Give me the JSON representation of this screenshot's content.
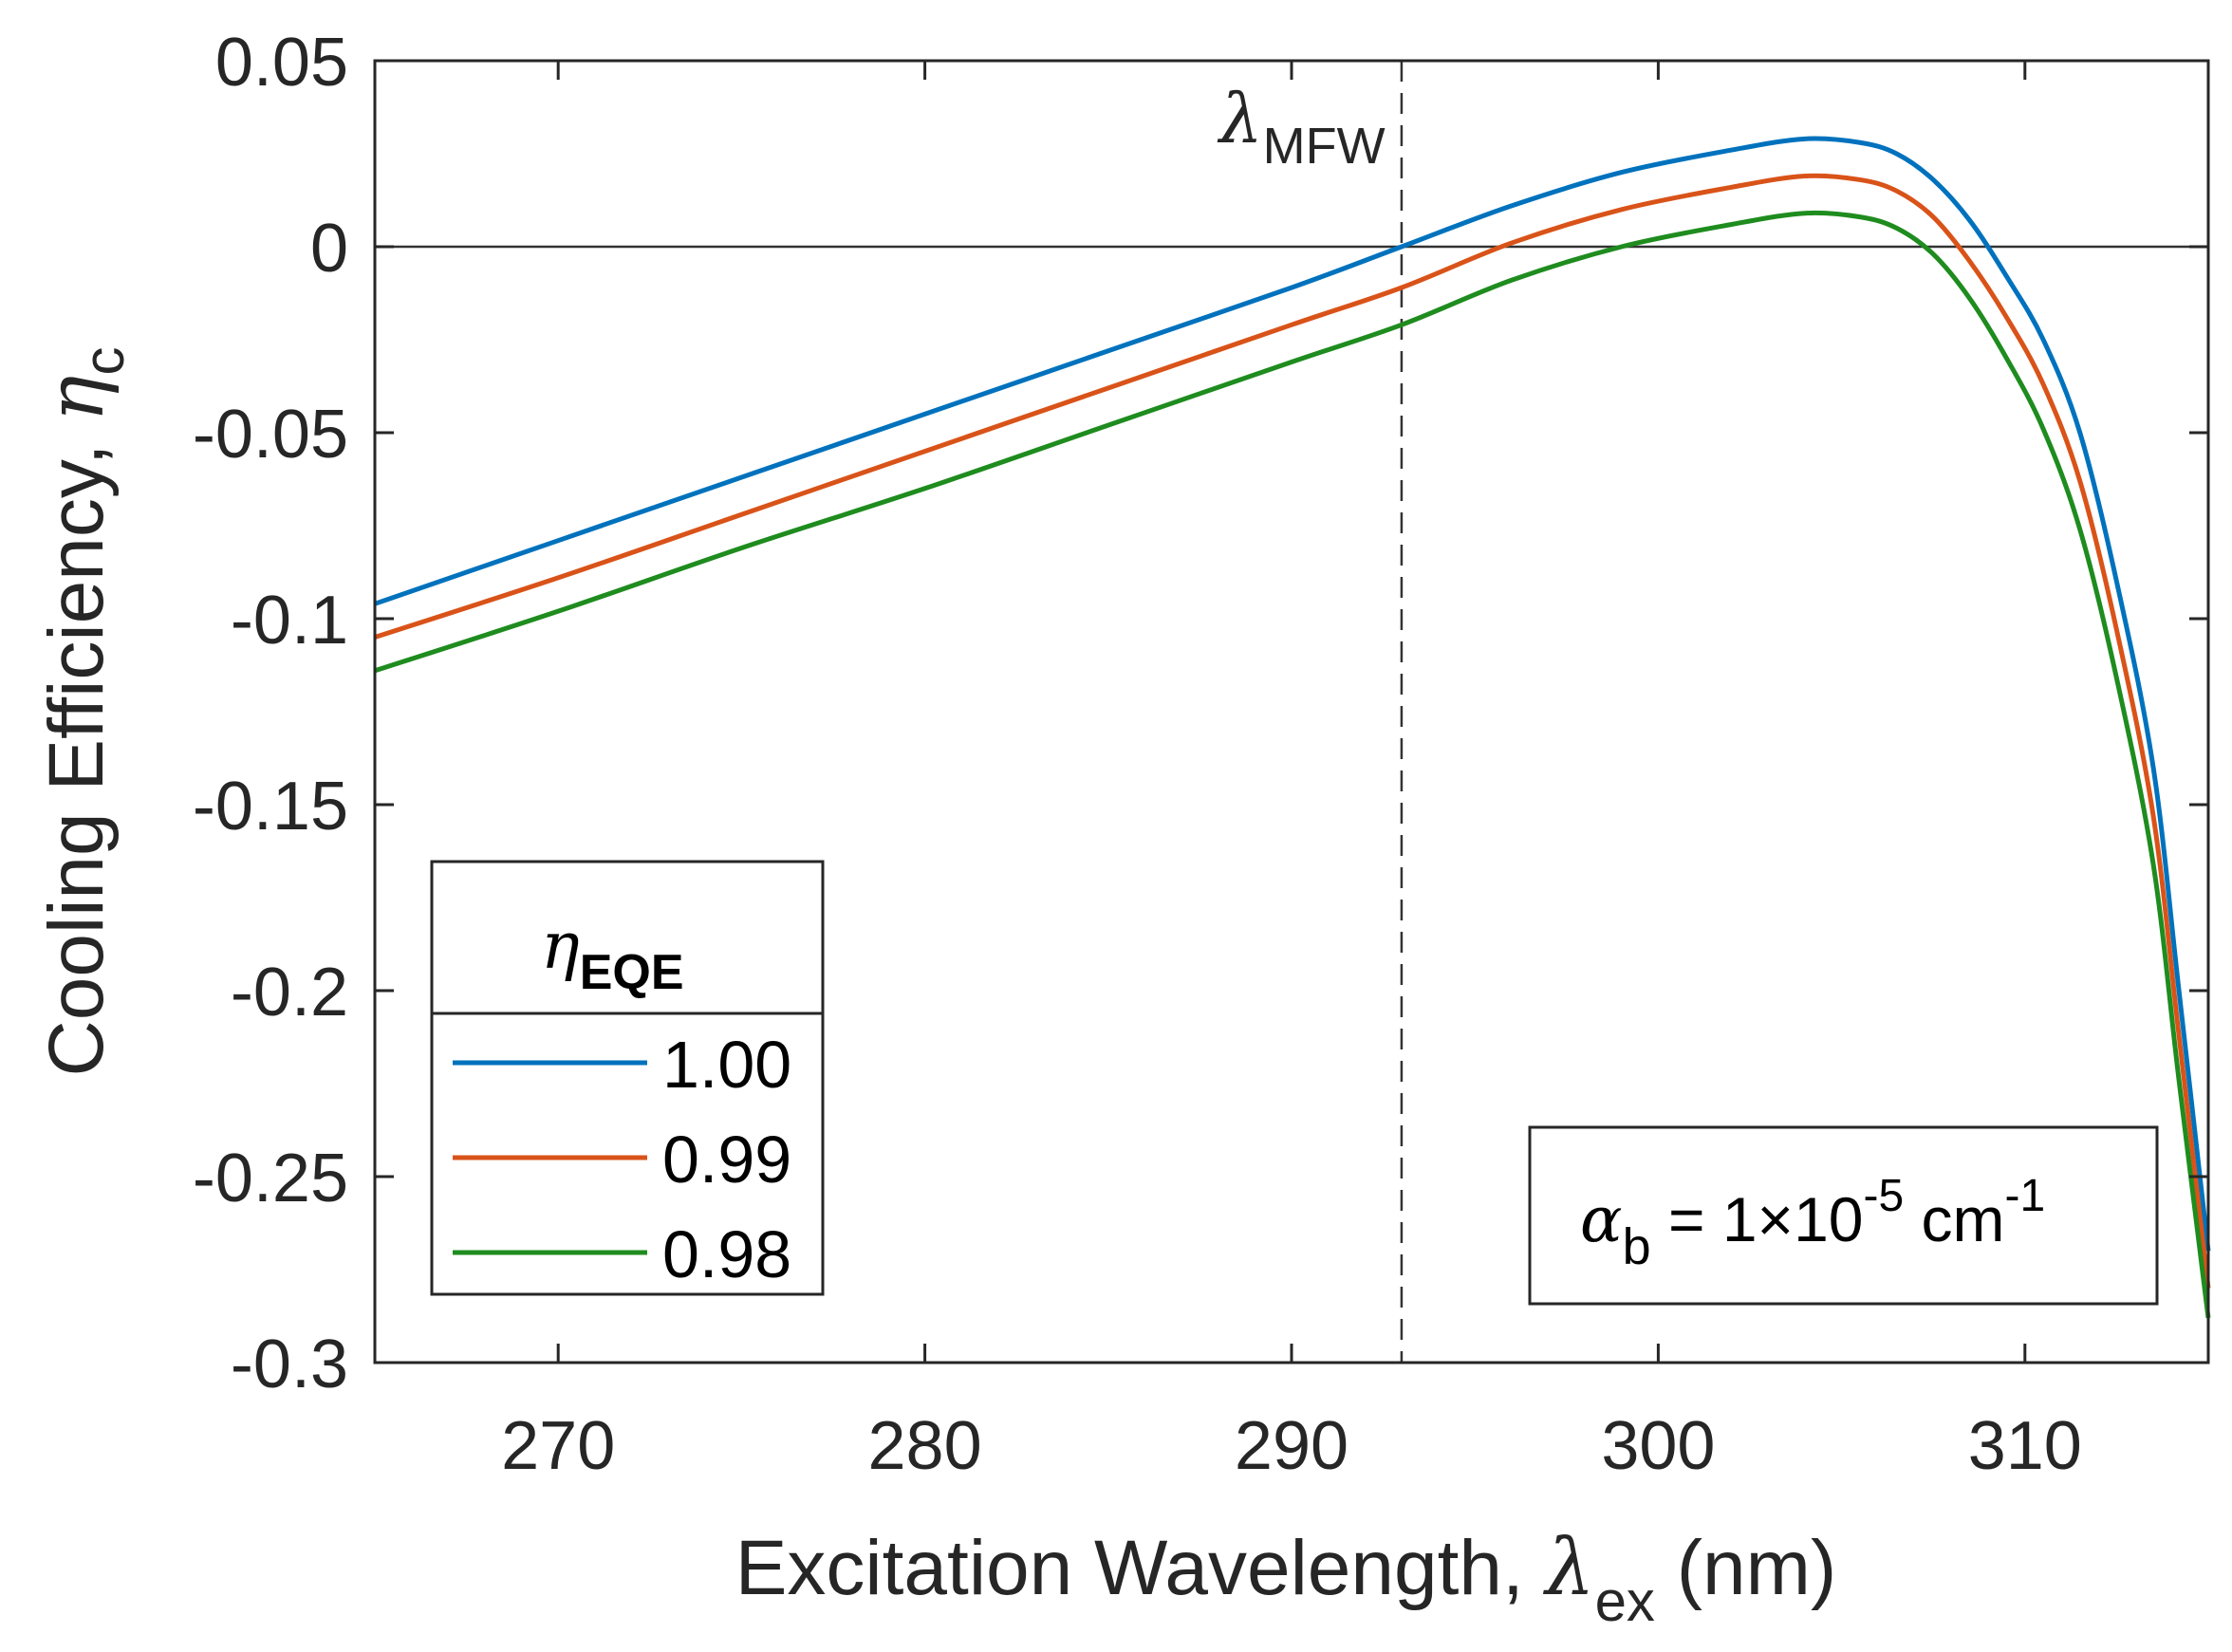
{
  "chart_data": {
    "type": "line",
    "title": "",
    "xlabel": "Excitation Wavelength, ",
    "xlabel_symbol": "λ",
    "xlabel_sub": "ex",
    "xlabel_unit": " (nm)",
    "ylabel": "Cooling Efficiency, ",
    "ylabel_symbol": "η",
    "ylabel_sub": "c",
    "xlim": [
      265,
      315
    ],
    "ylim": [
      -0.3,
      0.05
    ],
    "xticks": [
      270,
      280,
      290,
      300,
      310
    ],
    "xtick_labels": [
      "270",
      "280",
      "290",
      "300",
      "310"
    ],
    "yticks": [
      0.05,
      0,
      -0.05,
      -0.1,
      -0.15,
      -0.2,
      -0.25,
      -0.3
    ],
    "ytick_labels": [
      "0.05",
      "0",
      "-0.05",
      "-0.1",
      "-0.15",
      "-0.2",
      "-0.25",
      "-0.3"
    ],
    "grid": false,
    "zero_line": 0,
    "vline": {
      "x": 293,
      "label_symbol": "λ",
      "label_sub": "MFW"
    },
    "legend": {
      "title_symbol": "η",
      "title_sub": "EQE",
      "position": "bottom-left"
    },
    "annotation": {
      "symbol": "α",
      "sub": "b",
      "text": " = 1×10",
      "exp": "-5",
      "unit": " cm",
      "unit_exp": "-1"
    },
    "series": [
      {
        "name": "1.00",
        "color": "#0072BD",
        "x": [
          265,
          270,
          275,
          280,
          285,
          290,
          293,
          296,
          299,
          302,
          304,
          305.5,
          306.5,
          307.5,
          308.5,
          309.5,
          310.5,
          311.5,
          312.5,
          313.5,
          314.2,
          315
        ],
        "y": [
          -0.096,
          -0.079,
          -0.062,
          -0.045,
          -0.028,
          -0.011,
          0.0,
          0.011,
          0.02,
          0.026,
          0.029,
          0.028,
          0.025,
          0.018,
          0.007,
          -0.008,
          -0.025,
          -0.05,
          -0.09,
          -0.14,
          -0.2,
          -0.27
        ]
      },
      {
        "name": "0.99",
        "color": "#D95319",
        "x": [
          265,
          270,
          275,
          280,
          285,
          290,
          293,
          296,
          299,
          302,
          304,
          305.5,
          306.5,
          307.5,
          308.5,
          309.5,
          310.5,
          311.5,
          312.5,
          313.5,
          314.2,
          315
        ],
        "y": [
          -0.105,
          -0.089,
          -0.072,
          -0.055,
          -0.038,
          -0.021,
          -0.011,
          0.001,
          0.01,
          0.016,
          0.019,
          0.018,
          0.015,
          0.008,
          -0.004,
          -0.019,
          -0.037,
          -0.063,
          -0.103,
          -0.153,
          -0.212,
          -0.28
        ]
      },
      {
        "name": "0.98",
        "color": "#1E8C1E",
        "x": [
          265,
          270,
          275,
          280,
          285,
          290,
          293,
          296,
          299,
          302,
          304,
          305.5,
          306.5,
          307.5,
          308.5,
          309.5,
          310.5,
          311.5,
          312.5,
          313.5,
          314.2,
          315
        ],
        "y": [
          -0.114,
          -0.098,
          -0.081,
          -0.065,
          -0.048,
          -0.031,
          -0.021,
          -0.009,
          0.0,
          0.006,
          0.009,
          0.008,
          0.005,
          -0.002,
          -0.014,
          -0.03,
          -0.049,
          -0.076,
          -0.116,
          -0.166,
          -0.224,
          -0.288
        ]
      }
    ]
  }
}
